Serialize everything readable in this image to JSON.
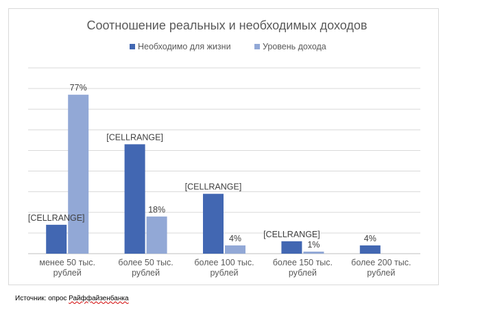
{
  "chart_data": {
    "type": "bar",
    "title": "Соотношение реальных и необходимых доходов",
    "categories": [
      [
        "менее 50 тыс.",
        "рублей"
      ],
      [
        "более 50 тыс.",
        "рублей"
      ],
      [
        "более 100 тыс.",
        "рублей"
      ],
      [
        "более 150 тыс.",
        "рублей"
      ],
      [
        "более 200 тыс.",
        "рублей"
      ]
    ],
    "series": [
      {
        "name": "Необходимо для жизни",
        "color": "#4267b2",
        "values": [
          14,
          53,
          29,
          6,
          4
        ],
        "labels": [
          "[CELLRANGE]",
          "[CELLRANGE]",
          "[CELLRANGE]",
          "[CELLRANGE]",
          "4%"
        ]
      },
      {
        "name": "Уровень дохода",
        "color": "#92a8d6",
        "values": [
          77,
          18,
          4,
          1,
          0
        ],
        "labels": [
          "77%",
          "18%",
          "4%",
          "1%",
          ""
        ]
      }
    ],
    "ylim": [
      0,
      90
    ],
    "y_gridline_step": 10,
    "grid": true,
    "legend": "top-center"
  },
  "footer": {
    "source_prefix": "Источник: опрос ",
    "source_name": "Райффайзенбанка"
  }
}
